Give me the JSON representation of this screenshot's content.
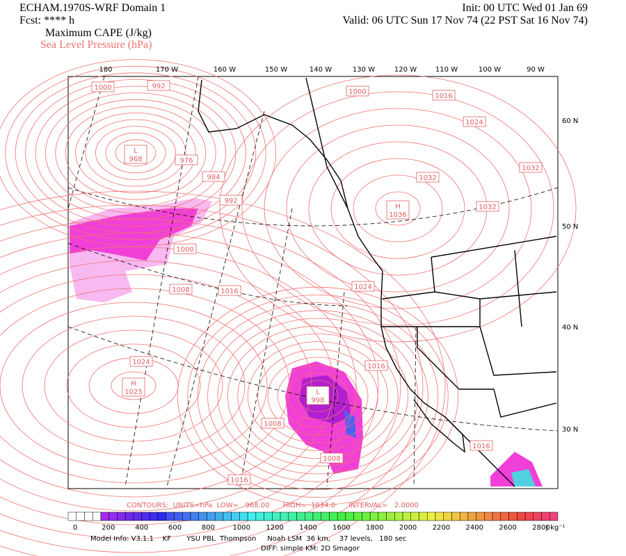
{
  "header": {
    "model": "ECHAM.1970S-WRF Domain 1",
    "fcst": "Fcst: **** h",
    "field1": "Maximum CAPE (J/kg)",
    "field2": "Sea Level Pressure (hPa)",
    "init": "Init: 00 UTC Wed 01 Jan 69",
    "valid": "Valid: 06 UTC Sun 17 Nov 74 (22 PST Sat 16 Nov 74)"
  },
  "map": {
    "lon_labels": [
      "180",
      "170 W",
      "160 W",
      "150 W",
      "140 W",
      "130 W",
      "120 W",
      "110 W",
      "100 W",
      "90 W"
    ],
    "lat_labels": [
      "60 N",
      "50 N",
      "40 N",
      "30 N"
    ],
    "contour_labels": [
      "1000",
      "992",
      "976",
      "984",
      "992",
      "1000",
      "1008",
      "1016",
      "1000",
      "1016",
      "1024",
      "1032",
      "1032",
      "1032",
      "1024",
      "1016",
      "1024",
      "1008",
      "1008",
      "1016",
      "1016"
    ],
    "centers": [
      {
        "symbol": "L",
        "value": "968"
      },
      {
        "symbol": "H",
        "value": "1036"
      },
      {
        "symbol": "H",
        "value": "1025"
      },
      {
        "symbol": "L",
        "value": "998"
      }
    ]
  },
  "footer": {
    "contours": "CONTOURS:  UNITS=hPa  LOW=   968.00      HIGH=  1034.0      INTERVAL=   2.0000",
    "colorbar_labels": [
      0,
      200,
      400,
      600,
      800,
      1000,
      1200,
      1400,
      1600,
      1800,
      2000,
      2200,
      2400,
      2600,
      2800
    ],
    "colorbar_unit": "J kg⁻¹",
    "model_info": "Model Info: V3.1.1    KF       YSU PBL  Thompson     Noah LSM  36 km,    37 levels,   180 sec",
    "diff": "DIFF: simple KM: 2D Smagor"
  }
}
